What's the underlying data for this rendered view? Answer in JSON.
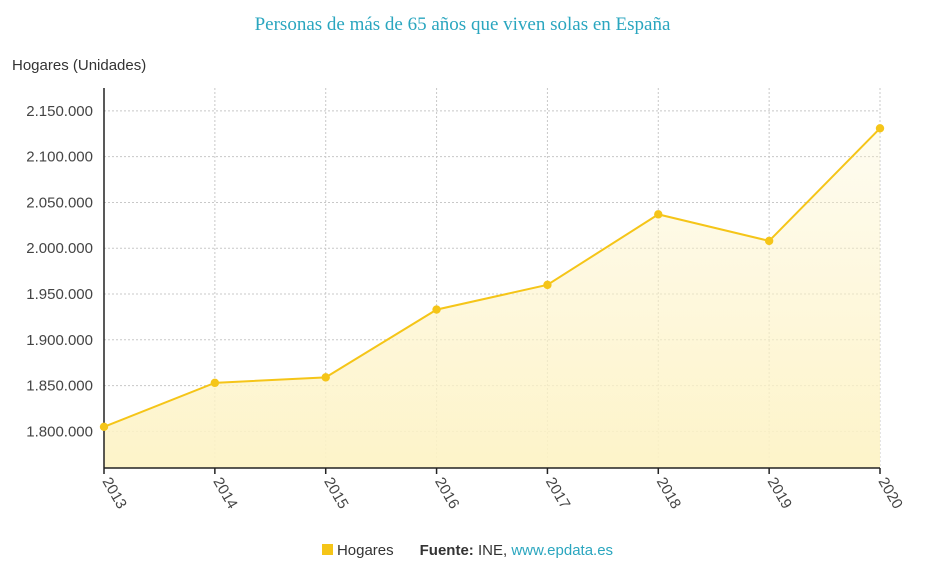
{
  "colors": {
    "title": "#2aa6bf",
    "line": "#f5c518",
    "fill": "#fdf3c6",
    "grid": "#c8c8c8",
    "axis": "#222222",
    "link": "#2aa6bf"
  },
  "legend": {
    "series_label": "Hogares",
    "source_label": "Fuente:",
    "source_text": " INE, ",
    "source_link": "www.epdata.es"
  },
  "chart_data": {
    "type": "area",
    "title": "Personas de más de 65 años que viven solas en España",
    "ylabel": "Hogares (Unidades)",
    "xlabel": "",
    "categories": [
      "2013",
      "2014",
      "2015",
      "2016",
      "2017",
      "2018",
      "2019",
      "2020"
    ],
    "series": [
      {
        "name": "Hogares",
        "values": [
          1805000,
          1853000,
          1859000,
          1933000,
          1960000,
          2037000,
          2008000,
          2131000
        ]
      }
    ],
    "ylim": [
      1760000,
      2175000
    ],
    "yticks": [
      1800000,
      1850000,
      1900000,
      1950000,
      2000000,
      2050000,
      2100000,
      2150000
    ],
    "yticklabels": [
      "1.800.000",
      "1.850.000",
      "1.900.000",
      "1.950.000",
      "2.000.000",
      "2.050.000",
      "2.100.000",
      "2.150.000"
    ],
    "grid": true,
    "legend_position": "bottom"
  }
}
